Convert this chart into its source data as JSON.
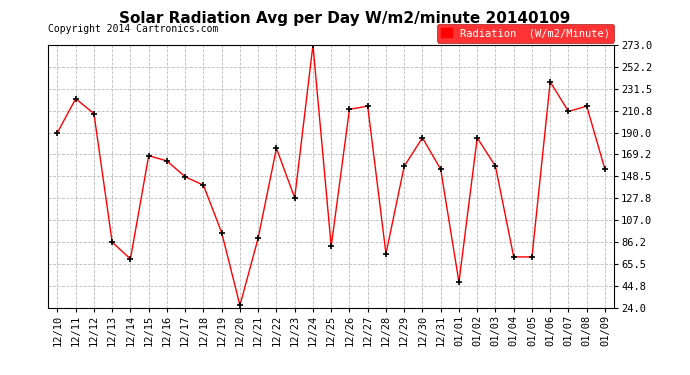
{
  "title": "Solar Radiation Avg per Day W/m2/minute 20140109",
  "copyright": "Copyright 2014 Cartronics.com",
  "legend_label": "Radiation  (W/m2/Minute)",
  "line_color": "red",
  "marker": "+",
  "marker_color": "black",
  "background_color": "white",
  "grid_color": "#bbbbbb",
  "dates": [
    "12/10",
    "12/11",
    "12/12",
    "12/13",
    "12/14",
    "12/15",
    "12/16",
    "12/17",
    "12/18",
    "12/19",
    "12/20",
    "12/21",
    "12/22",
    "12/23",
    "12/24",
    "12/25",
    "12/26",
    "12/27",
    "12/28",
    "12/29",
    "12/30",
    "12/31",
    "01/01",
    "01/02",
    "01/03",
    "01/04",
    "01/05",
    "01/06",
    "01/07",
    "01/08",
    "01/09"
  ],
  "values": [
    190,
    222,
    208,
    86,
    70,
    168,
    163,
    148,
    140,
    95,
    26,
    90,
    175,
    128,
    273,
    82,
    212,
    215,
    75,
    158,
    185,
    155,
    48,
    185,
    158,
    72,
    72,
    238,
    210,
    215,
    155
  ],
  "yticks": [
    24.0,
    44.8,
    65.5,
    86.2,
    107.0,
    127.8,
    148.5,
    169.2,
    190.0,
    210.8,
    231.5,
    252.2,
    273.0
  ],
  "ylim_min": 24.0,
  "ylim_max": 273.0,
  "title_fontsize": 11,
  "axis_fontsize": 7.5,
  "copyright_fontsize": 7,
  "legend_fontsize": 7.5
}
